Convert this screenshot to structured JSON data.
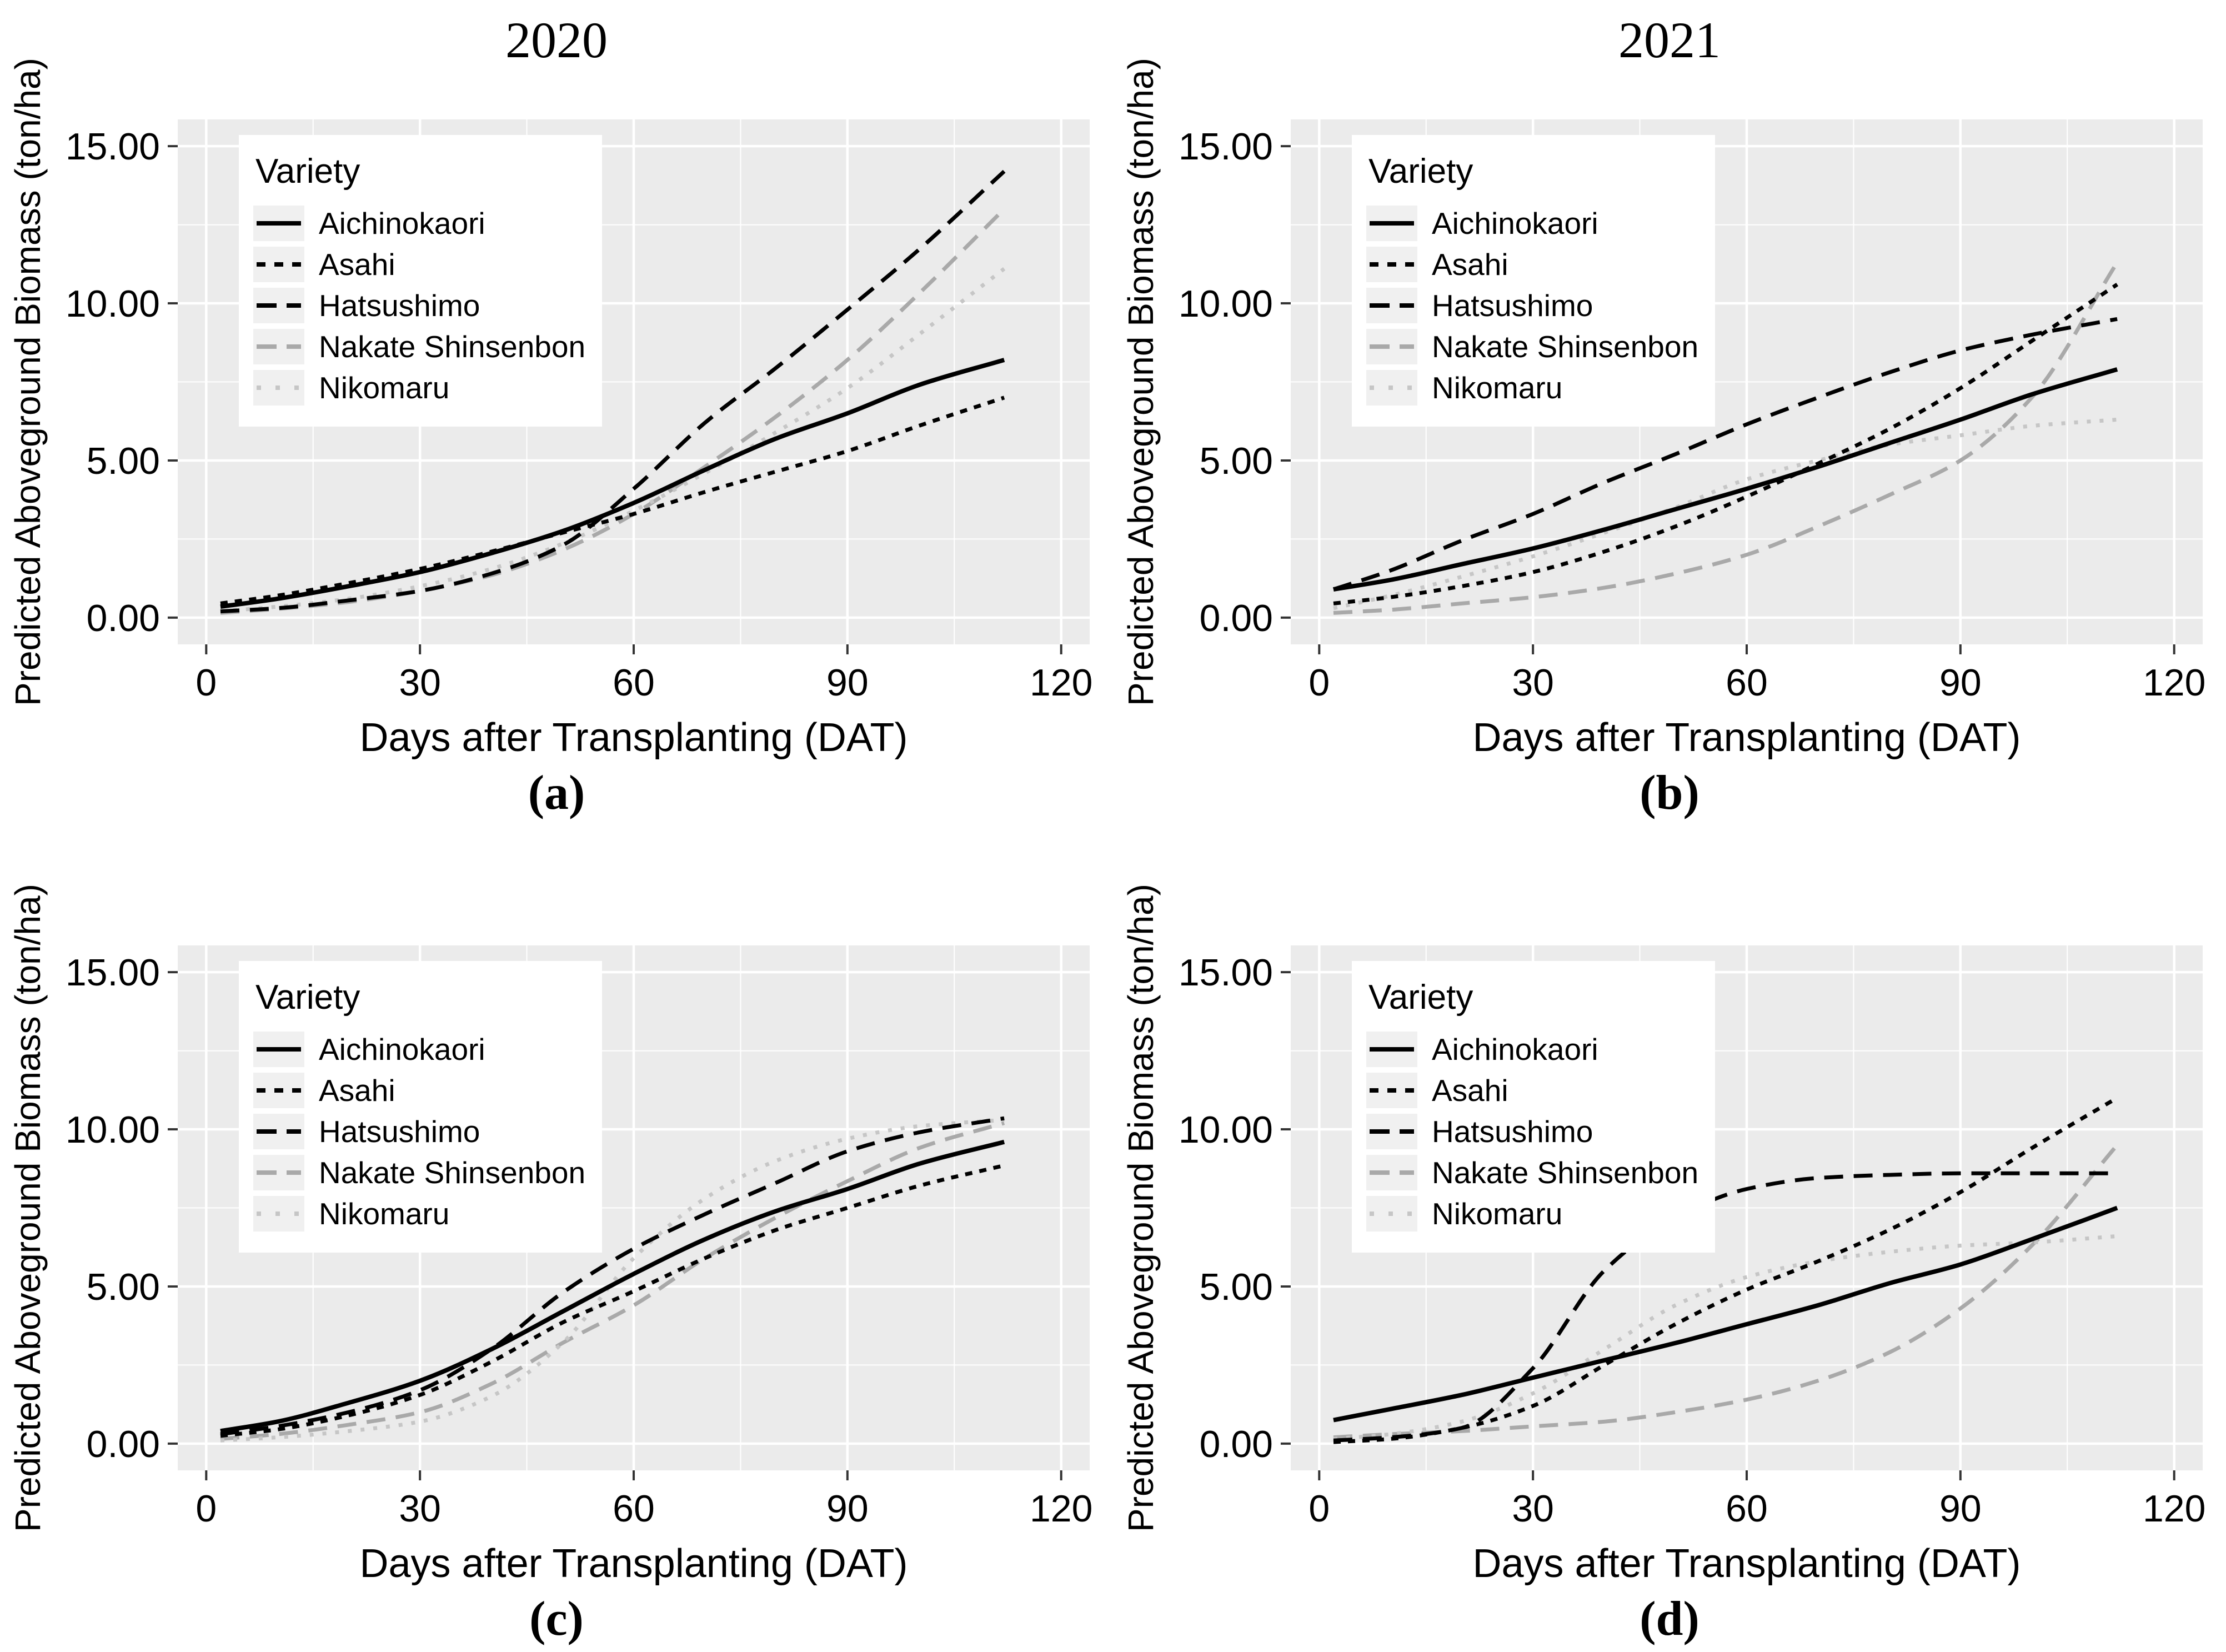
{
  "figure": {
    "legend_title": "Variety",
    "axes": {
      "xlabel": "Days after Transplanting (DAT)",
      "ylabel": "Predicted Aboveground Biomass (ton/ha)"
    },
    "colors": {
      "panel_background": "#ebebeb",
      "gridline": "#ffffff",
      "black_series": "#000000",
      "gray_series": "#a9a9a9",
      "lightgray_series": "#c6c6c6",
      "text": "#000000"
    }
  },
  "chart_data": [
    {
      "id": "a",
      "title": "2020",
      "panel_label": "(a)",
      "type": "line",
      "xlabel": "Days after Transplanting (DAT)",
      "ylabel": "Predicted Aboveground Biomass (ton/ha)",
      "xlim": [
        0,
        120
      ],
      "ylim": [
        0,
        15
      ],
      "xtick_values": [
        0,
        30,
        60,
        90,
        120
      ],
      "xtick_labels": [
        "0",
        "30",
        "60",
        "90",
        "120"
      ],
      "ytick_values": [
        0,
        5,
        10,
        15
      ],
      "ytick_labels": [
        "0.00",
        "5.00",
        "10.00",
        "15.00"
      ],
      "x": [
        2,
        10,
        20,
        30,
        40,
        50,
        60,
        70,
        80,
        90,
        100,
        112
      ],
      "series": [
        {
          "name": "Aichinokaori",
          "color": "#000000",
          "dash": "solid",
          "values": [
            0.35,
            0.6,
            1.0,
            1.45,
            2.05,
            2.75,
            3.65,
            4.7,
            5.7,
            6.5,
            7.4,
            8.2
          ]
        },
        {
          "name": "Asahi",
          "color": "#000000",
          "dash": "dashed",
          "values": [
            0.45,
            0.7,
            1.1,
            1.55,
            2.1,
            2.7,
            3.3,
            4.0,
            4.65,
            5.3,
            6.1,
            7.0
          ]
        },
        {
          "name": "Hatsushimo",
          "color": "#000000",
          "dash": "longdash",
          "values": [
            0.2,
            0.3,
            0.55,
            0.85,
            1.4,
            2.3,
            4.1,
            6.2,
            7.95,
            9.8,
            11.7,
            14.2
          ]
        },
        {
          "name": "Nakate Shinsenbon",
          "color": "#a9a9a9",
          "dash": "longdash",
          "values": [
            0.15,
            0.28,
            0.5,
            0.85,
            1.35,
            2.15,
            3.3,
            4.8,
            6.4,
            8.2,
            10.3,
            13.0
          ]
        },
        {
          "name": "Nikomaru",
          "color": "#c6c6c6",
          "dash": "dotted",
          "values": [
            0.2,
            0.35,
            0.6,
            1.0,
            1.55,
            2.35,
            3.4,
            4.6,
            5.9,
            7.3,
            9.0,
            11.1
          ]
        }
      ]
    },
    {
      "id": "b",
      "title": "2021",
      "panel_label": "(b)",
      "type": "line",
      "xlabel": "Days after Transplanting (DAT)",
      "ylabel": "Predicted Aboveground Biomass (ton/ha)",
      "xlim": [
        0,
        120
      ],
      "ylim": [
        0,
        15
      ],
      "xtick_values": [
        0,
        30,
        60,
        90,
        120
      ],
      "xtick_labels": [
        "0",
        "30",
        "60",
        "90",
        "120"
      ],
      "ytick_values": [
        0,
        5,
        10,
        15
      ],
      "ytick_labels": [
        "0.00",
        "5.00",
        "10.00",
        "15.00"
      ],
      "x": [
        2,
        10,
        20,
        30,
        40,
        50,
        60,
        70,
        80,
        90,
        100,
        112
      ],
      "series": [
        {
          "name": "Aichinokaori",
          "color": "#000000",
          "dash": "solid",
          "values": [
            0.9,
            1.2,
            1.7,
            2.2,
            2.8,
            3.45,
            4.1,
            4.8,
            5.55,
            6.3,
            7.1,
            7.9
          ]
        },
        {
          "name": "Asahi",
          "color": "#000000",
          "dash": "dashed",
          "values": [
            0.45,
            0.65,
            1.0,
            1.45,
            2.1,
            2.9,
            3.85,
            4.9,
            6.0,
            7.3,
            8.8,
            10.6
          ]
        },
        {
          "name": "Hatsushimo",
          "color": "#000000",
          "dash": "longdash",
          "values": [
            0.9,
            1.5,
            2.45,
            3.3,
            4.3,
            5.2,
            6.15,
            7.0,
            7.8,
            8.5,
            9.0,
            9.5
          ]
        },
        {
          "name": "Nakate Shinsenbon",
          "color": "#a9a9a9",
          "dash": "longdash",
          "values": [
            0.15,
            0.25,
            0.45,
            0.65,
            0.95,
            1.4,
            2.0,
            2.9,
            3.9,
            5.0,
            7.0,
            11.3
          ]
        },
        {
          "name": "Nikomaru",
          "color": "#c6c6c6",
          "dash": "dotted",
          "values": [
            0.3,
            0.7,
            1.3,
            1.95,
            2.7,
            3.5,
            4.4,
            5.0,
            5.5,
            5.8,
            6.1,
            6.3
          ]
        }
      ]
    },
    {
      "id": "c",
      "title": "",
      "panel_label": "(c)",
      "type": "line",
      "xlabel": "Days after Transplanting (DAT)",
      "ylabel": "Predicted Aboveground Biomass (ton/ha)",
      "xlim": [
        0,
        120
      ],
      "ylim": [
        0,
        15
      ],
      "xtick_values": [
        0,
        30,
        60,
        90,
        120
      ],
      "xtick_labels": [
        "0",
        "30",
        "60",
        "90",
        "120"
      ],
      "ytick_values": [
        0,
        5,
        10,
        15
      ],
      "ytick_labels": [
        "0.00",
        "5.00",
        "10.00",
        "15.00"
      ],
      "x": [
        2,
        10,
        20,
        30,
        40,
        50,
        60,
        70,
        80,
        90,
        100,
        112
      ],
      "series": [
        {
          "name": "Aichinokaori",
          "color": "#000000",
          "dash": "solid",
          "values": [
            0.4,
            0.7,
            1.3,
            2.0,
            3.0,
            4.2,
            5.4,
            6.5,
            7.4,
            8.1,
            8.9,
            9.6
          ]
        },
        {
          "name": "Asahi",
          "color": "#000000",
          "dash": "dashed",
          "values": [
            0.25,
            0.45,
            0.9,
            1.55,
            2.6,
            3.85,
            4.85,
            5.9,
            6.8,
            7.5,
            8.2,
            8.85
          ]
        },
        {
          "name": "Hatsushimo",
          "color": "#000000",
          "dash": "longdash",
          "values": [
            0.3,
            0.55,
            1.0,
            1.7,
            3.0,
            4.8,
            6.2,
            7.3,
            8.3,
            9.3,
            9.9,
            10.35
          ]
        },
        {
          "name": "Nakate Shinsenbon",
          "color": "#a9a9a9",
          "dash": "longdash",
          "values": [
            0.15,
            0.3,
            0.6,
            1.0,
            1.9,
            3.2,
            4.4,
            5.9,
            7.2,
            8.35,
            9.4,
            10.2
          ]
        },
        {
          "name": "Nikomaru",
          "color": "#c6c6c6",
          "dash": "dotted",
          "values": [
            0.1,
            0.2,
            0.4,
            0.7,
            1.5,
            3.2,
            5.9,
            7.8,
            9.0,
            9.7,
            10.1,
            10.3
          ]
        }
      ]
    },
    {
      "id": "d",
      "title": "",
      "panel_label": "(d)",
      "type": "line",
      "xlabel": "Days after Transplanting (DAT)",
      "ylabel": "Predicted Aboveground Biomass (ton/ha)",
      "xlim": [
        0,
        120
      ],
      "ylim": [
        0,
        15
      ],
      "xtick_values": [
        0,
        30,
        60,
        90,
        120
      ],
      "xtick_labels": [
        "0",
        "30",
        "60",
        "90",
        "120"
      ],
      "ytick_values": [
        0,
        5,
        10,
        15
      ],
      "ytick_labels": [
        "0.00",
        "5.00",
        "10.00",
        "15.00"
      ],
      "x": [
        2,
        10,
        20,
        30,
        40,
        50,
        60,
        70,
        80,
        90,
        100,
        112
      ],
      "series": [
        {
          "name": "Aichinokaori",
          "color": "#000000",
          "dash": "solid",
          "values": [
            0.75,
            1.1,
            1.55,
            2.1,
            2.65,
            3.2,
            3.8,
            4.4,
            5.1,
            5.7,
            6.5,
            7.5
          ]
        },
        {
          "name": "Asahi",
          "color": "#000000",
          "dash": "dashed",
          "values": [
            0.05,
            0.15,
            0.5,
            1.2,
            2.5,
            3.8,
            4.9,
            5.8,
            6.8,
            8.0,
            9.4,
            11.0
          ]
        },
        {
          "name": "Hatsushimo",
          "color": "#000000",
          "dash": "longdash",
          "values": [
            0.1,
            0.2,
            0.5,
            2.4,
            5.5,
            7.2,
            8.1,
            8.45,
            8.55,
            8.6,
            8.6,
            8.6
          ]
        },
        {
          "name": "Nakate Shinsenbon",
          "color": "#a9a9a9",
          "dash": "longdash",
          "values": [
            0.2,
            0.3,
            0.4,
            0.55,
            0.7,
            1.0,
            1.4,
            2.0,
            2.9,
            4.3,
            6.3,
            9.5
          ]
        },
        {
          "name": "Nikomaru",
          "color": "#c6c6c6",
          "dash": "dotted",
          "values": [
            0.15,
            0.3,
            0.7,
            1.6,
            3.0,
            4.4,
            5.3,
            5.8,
            6.1,
            6.3,
            6.4,
            6.6
          ]
        }
      ]
    }
  ]
}
